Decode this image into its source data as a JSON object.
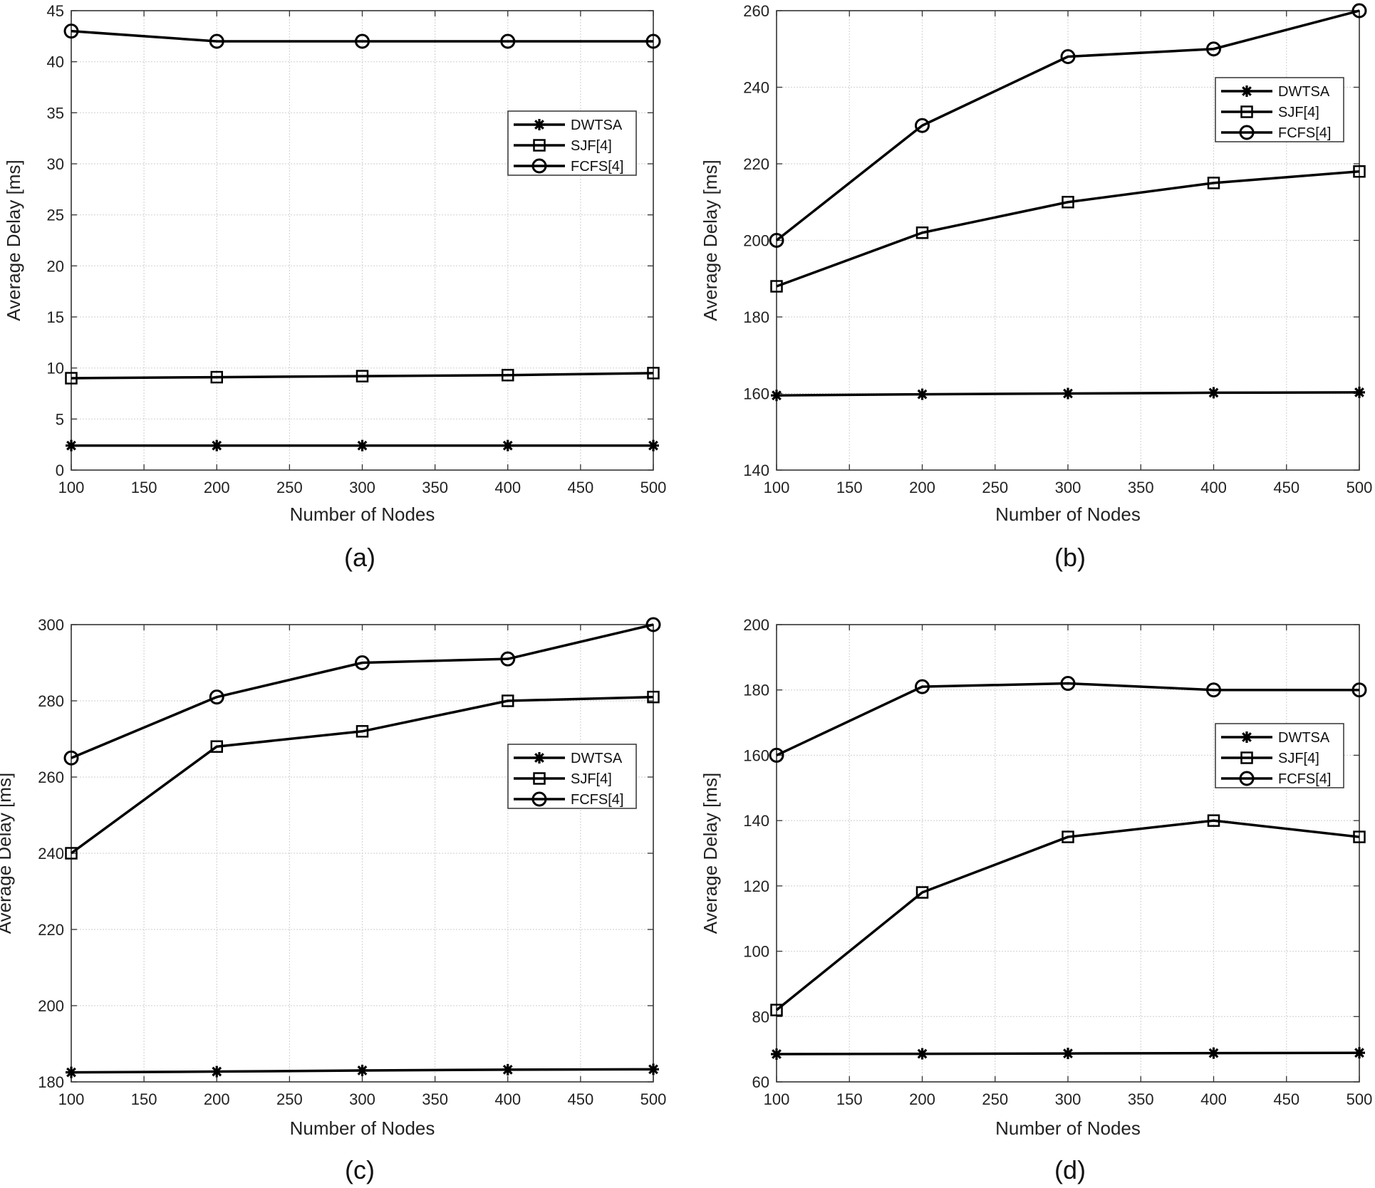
{
  "chart_data": [
    {
      "type": "line",
      "caption": "(a)",
      "xlabel": "Number of Nodes",
      "ylabel": "Average Delay [ms]",
      "x": [
        100,
        200,
        300,
        400,
        500
      ],
      "xlim": [
        100,
        500
      ],
      "ylim": [
        0,
        45
      ],
      "xticks": [
        100,
        150,
        200,
        250,
        300,
        350,
        400,
        450,
        500
      ],
      "yticks": [
        0,
        5,
        10,
        15,
        20,
        25,
        30,
        35,
        40,
        45
      ],
      "grid": true,
      "legend_position": "upper-right",
      "series": [
        {
          "name": "DWTSA",
          "marker": "asterisk",
          "values": [
            2.4,
            2.4,
            2.4,
            2.4,
            2.4
          ]
        },
        {
          "name": "SJF[4]",
          "marker": "square",
          "values": [
            9.0,
            9.1,
            9.2,
            9.3,
            9.5
          ]
        },
        {
          "name": "FCFS[4]",
          "marker": "circle",
          "values": [
            43,
            42,
            42,
            42,
            42
          ]
        }
      ]
    },
    {
      "type": "line",
      "caption": "(b)",
      "xlabel": "Number of Nodes",
      "ylabel": "Average Delay [ms]",
      "x": [
        100,
        200,
        300,
        400,
        500
      ],
      "xlim": [
        100,
        500
      ],
      "ylim": [
        140,
        260
      ],
      "xticks": [
        100,
        150,
        200,
        250,
        300,
        350,
        400,
        450,
        500
      ],
      "yticks": [
        140,
        160,
        180,
        200,
        220,
        240,
        260
      ],
      "grid": true,
      "legend_position": "upper-right",
      "series": [
        {
          "name": "DWTSA",
          "marker": "asterisk",
          "values": [
            159.5,
            159.8,
            160.0,
            160.2,
            160.3
          ]
        },
        {
          "name": "SJF[4]",
          "marker": "square",
          "values": [
            188,
            202,
            210,
            215,
            218
          ]
        },
        {
          "name": "FCFS[4]",
          "marker": "circle",
          "values": [
            200,
            230,
            248,
            250,
            260
          ]
        }
      ]
    },
    {
      "type": "line",
      "caption": "(c)",
      "xlabel": "Number of Nodes",
      "ylabel": "Average Delay [ms]",
      "x": [
        100,
        200,
        300,
        400,
        500
      ],
      "xlim": [
        100,
        500
      ],
      "ylim": [
        180,
        300
      ],
      "xticks": [
        100,
        150,
        200,
        250,
        300,
        350,
        400,
        450,
        500
      ],
      "yticks": [
        180,
        200,
        220,
        240,
        260,
        280,
        300
      ],
      "grid": true,
      "legend_position": "middle-right",
      "series": [
        {
          "name": "DWTSA",
          "marker": "asterisk",
          "values": [
            182.5,
            182.7,
            183.0,
            183.2,
            183.3
          ]
        },
        {
          "name": "SJF[4]",
          "marker": "square",
          "values": [
            240,
            268,
            272,
            280,
            281
          ]
        },
        {
          "name": "FCFS[4]",
          "marker": "circle",
          "values": [
            265,
            281,
            290,
            291,
            300
          ]
        }
      ]
    },
    {
      "type": "line",
      "caption": "(d)",
      "xlabel": "Number of Nodes",
      "ylabel": "Average Delay [ms]",
      "x": [
        100,
        200,
        300,
        400,
        500
      ],
      "xlim": [
        100,
        500
      ],
      "ylim": [
        60,
        200
      ],
      "xticks": [
        100,
        150,
        200,
        250,
        300,
        350,
        400,
        450,
        500
      ],
      "yticks": [
        60,
        80,
        100,
        120,
        140,
        160,
        180,
        200
      ],
      "grid": true,
      "legend_position": "upper-right",
      "series": [
        {
          "name": "DWTSA",
          "marker": "asterisk",
          "values": [
            68.5,
            68.6,
            68.7,
            68.8,
            68.9
          ]
        },
        {
          "name": "SJF[4]",
          "marker": "square",
          "values": [
            82,
            118,
            135,
            140,
            135
          ]
        },
        {
          "name": "FCFS[4]",
          "marker": "circle",
          "values": [
            160,
            181,
            182,
            180,
            180
          ]
        }
      ]
    }
  ]
}
